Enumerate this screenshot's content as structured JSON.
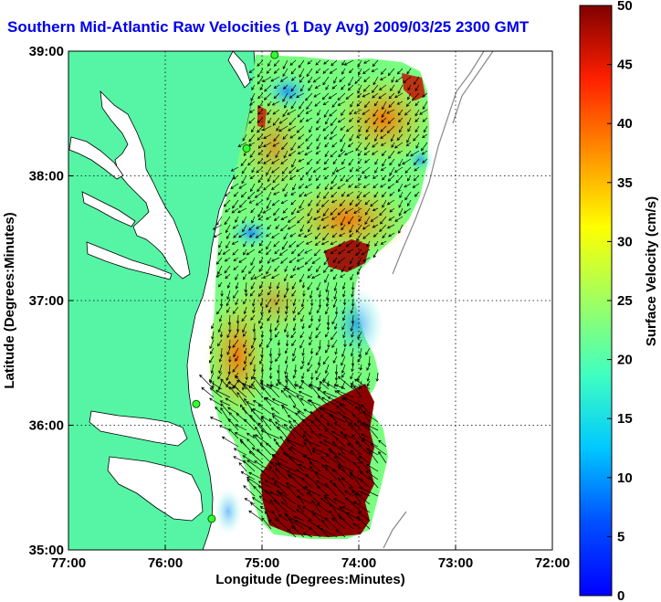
{
  "chart_data": {
    "type": "map",
    "title": "Southern Mid-Atlantic Raw Velocities (1 Day Avg) 2009/03/25 2300 GMT",
    "xlabel": "Longitude (Degrees:Minutes)",
    "ylabel": "Latitude (Degrees:Minutes)",
    "x_ticks": [
      "77:00",
      "76:00",
      "75:00",
      "74:00",
      "73:00",
      "72:00"
    ],
    "y_ticks": [
      "39:00",
      "38:00",
      "37:00",
      "36:00",
      "35:00"
    ],
    "xlim": [
      -77,
      -72
    ],
    "ylim": [
      35,
      39
    ],
    "grid": true,
    "colorbar": {
      "label": "Surface Velocity (cm/s)",
      "range": [
        0,
        50
      ],
      "ticks": [
        "50",
        "45",
        "40",
        "35",
        "30",
        "25",
        "20",
        "15",
        "10",
        "5",
        "0"
      ],
      "colormap": "jet"
    },
    "land_color": "#55f5a5",
    "stations": [
      {
        "lon": -74.87,
        "lat": 38.97
      },
      {
        "lon": -75.16,
        "lat": 38.22
      },
      {
        "lon": -75.68,
        "lat": 36.17
      },
      {
        "lon": -75.52,
        "lat": 35.25
      }
    ]
  }
}
